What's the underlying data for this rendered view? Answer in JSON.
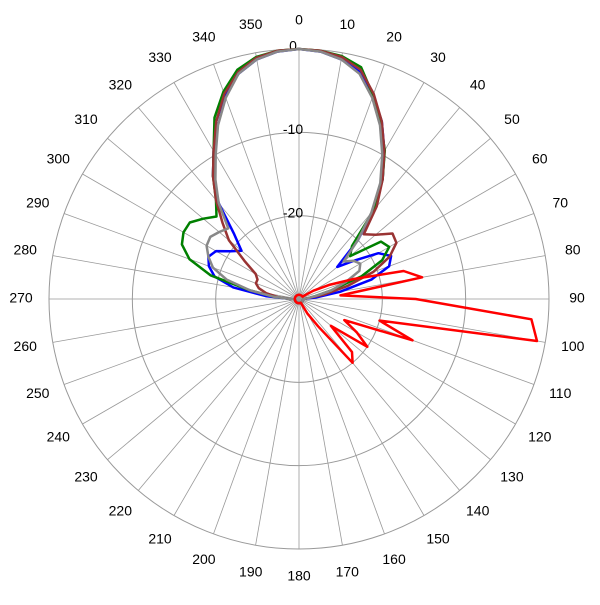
{
  "chart_data": {
    "type": "polar",
    "x": [
      0,
      5,
      10,
      15,
      20,
      25,
      30,
      35,
      40,
      45,
      50,
      55,
      60,
      65,
      70,
      75,
      80,
      85,
      90,
      95,
      100,
      105,
      110,
      115,
      120,
      125,
      130,
      135,
      140,
      145,
      150,
      155,
      160,
      165,
      170,
      175,
      180,
      185,
      190,
      195,
      200,
      205,
      210,
      215,
      220,
      225,
      230,
      235,
      240,
      245,
      250,
      255,
      260,
      265,
      270,
      275,
      280,
      285,
      290,
      295,
      300,
      305,
      310,
      315,
      320,
      325,
      330,
      335,
      340,
      345,
      350,
      355
    ],
    "xticks": [
      0,
      10,
      20,
      30,
      40,
      50,
      60,
      70,
      80,
      90,
      100,
      110,
      120,
      130,
      140,
      150,
      160,
      170,
      180,
      190,
      200,
      210,
      220,
      230,
      240,
      250,
      260,
      270,
      280,
      290,
      300,
      310,
      320,
      330,
      340,
      350
    ],
    "ylim": [
      -30,
      0
    ],
    "yticks": [
      -20,
      -10,
      0
    ],
    "grid": true,
    "series": [
      {
        "color": "#0000ff",
        "values": [
          0,
          -0.2,
          -0.8,
          -1.8,
          -4,
          -6.5,
          -9.5,
          -12.5,
          -16,
          -20,
          -24,
          -22,
          -19,
          -17.8,
          -18.5,
          -21,
          -25,
          -28,
          -29.5,
          -29.5,
          -29.5,
          -29.5,
          -29.5,
          -29.5,
          -29.5,
          -29.5,
          -29.5,
          -29.5,
          -29.5,
          -29.5,
          -29.5,
          -29.5,
          -29.5,
          -29.5,
          -29.5,
          -29.5,
          -29.5,
          -29.5,
          -29.5,
          -29.5,
          -29.5,
          -29.5,
          -29.5,
          -29.5,
          -29.5,
          -29.5,
          -29.5,
          -29.5,
          -29.5,
          -29.5,
          -29.5,
          -29.5,
          -29.5,
          -29.5,
          -29,
          -26,
          -22,
          -19.5,
          -18.5,
          -18,
          -18.5,
          -20,
          -21,
          -19,
          -15,
          -12,
          -9.5,
          -6.5,
          -4,
          -2,
          -0.8,
          -0.2
        ]
      },
      {
        "color": "#008000",
        "values": [
          0,
          -0.1,
          -0.4,
          -1.2,
          -4,
          -6.8,
          -9.4,
          -12.5,
          -16,
          -21,
          -22,
          -18,
          -17.5,
          -19,
          -22,
          -26,
          -28,
          -29,
          -29.5,
          -29.5,
          -29.5,
          -29.5,
          -29.5,
          -29.5,
          -29.5,
          -29.5,
          -29.5,
          -29.5,
          -29.5,
          -29.5,
          -29.5,
          -29.5,
          -29.5,
          -29.5,
          -29.5,
          -29.5,
          -29.5,
          -29.5,
          -29.5,
          -29.5,
          -29.5,
          -29.5,
          -29.5,
          -29.5,
          -29.5,
          -29.5,
          -29.5,
          -29.5,
          -29.5,
          -29.5,
          -29.5,
          -29.5,
          -29.5,
          -29.5,
          -29,
          -27,
          -24,
          -19,
          -16,
          -14.5,
          -14,
          -14,
          -15,
          -16,
          -14.5,
          -12,
          -9.5,
          -6,
          -3.5,
          -1.5,
          -0.5,
          -0.1
        ]
      },
      {
        "color": "#993333",
        "values": [
          0,
          -0.1,
          -0.5,
          -1.5,
          -3.8,
          -6.5,
          -9.5,
          -12.5,
          -15.5,
          -19,
          -18,
          -16.3,
          -16.5,
          -18,
          -20.5,
          -24,
          -27,
          -29,
          -29.5,
          -29.5,
          -29.5,
          -29.5,
          -29.5,
          -29.5,
          -29.5,
          -29.5,
          -29.5,
          -29.5,
          -29.5,
          -29.5,
          -29.5,
          -29.5,
          -29.5,
          -29.5,
          -29.5,
          -29.5,
          -29.5,
          -29.5,
          -29.5,
          -29.5,
          -29.5,
          -29.5,
          -29.5,
          -29.5,
          -29.5,
          -29.5,
          -29.5,
          -29.5,
          -29.5,
          -29.5,
          -29.5,
          -29.5,
          -29.5,
          -29.5,
          -29,
          -27.5,
          -26,
          -25,
          -24.5,
          -24.5,
          -24,
          -22,
          -19,
          -17,
          -14.5,
          -12,
          -9.5,
          -6.5,
          -3.8,
          -1.8,
          -0.6,
          -0.1
        ]
      },
      {
        "color": "#888888",
        "values": [
          0,
          -0.2,
          -0.8,
          -2,
          -4.3,
          -7,
          -10,
          -13,
          -16.5,
          -20,
          -23,
          -22,
          -21.5,
          -22,
          -24,
          -26,
          -28,
          -29,
          -29.5,
          -29.5,
          -29.5,
          -29.5,
          -29.5,
          -29.5,
          -29.5,
          -29.5,
          -29.5,
          -29.5,
          -29.5,
          -29.5,
          -29.5,
          -29.5,
          -29.5,
          -29.5,
          -29.5,
          -29.5,
          -29.5,
          -29.5,
          -29.5,
          -29.5,
          -29.5,
          -29.5,
          -29.5,
          -29.5,
          -29.5,
          -29.5,
          -29.5,
          -29.5,
          -29.5,
          -29.5,
          -29.5,
          -29.5,
          -29.5,
          -29.5,
          -29,
          -27,
          -24,
          -21,
          -19,
          -18,
          -17.2,
          -17,
          -17.5,
          -18,
          -15,
          -12.5,
          -10,
          -7,
          -4.3,
          -2,
          -0.8,
          -0.2
        ]
      },
      {
        "color": "#ff0000",
        "values": [
          -29.5,
          -29.5,
          -29.5,
          -29.5,
          -29.5,
          -29.5,
          -29.5,
          -29.5,
          -29.5,
          -29.5,
          -29.5,
          -29.5,
          -28,
          -26,
          -23,
          -17,
          -15,
          -25,
          -16,
          -2,
          -1,
          -20,
          -15.5,
          -24,
          -22,
          -20,
          -25,
          -21,
          -20,
          -26,
          -28,
          -29.5,
          -29.5,
          -29.5,
          -29.5,
          -29.5,
          -29.5,
          -29.5,
          -29.5,
          -29.5,
          -29.5,
          -29.5,
          -29.5,
          -29.5,
          -29.5,
          -29.5,
          -29.5,
          -29.5,
          -29.5,
          -29.5,
          -29.5,
          -29.5,
          -29.5,
          -29.5,
          -29.5,
          -29.5,
          -29.5,
          -29.5,
          -29.5,
          -29.5,
          -29.5,
          -29.5,
          -29.5,
          -29.5,
          -29.5,
          -29.5,
          -29.5,
          -29.5,
          -29.5,
          -29.5,
          -29.5,
          -29.5
        ]
      }
    ]
  }
}
